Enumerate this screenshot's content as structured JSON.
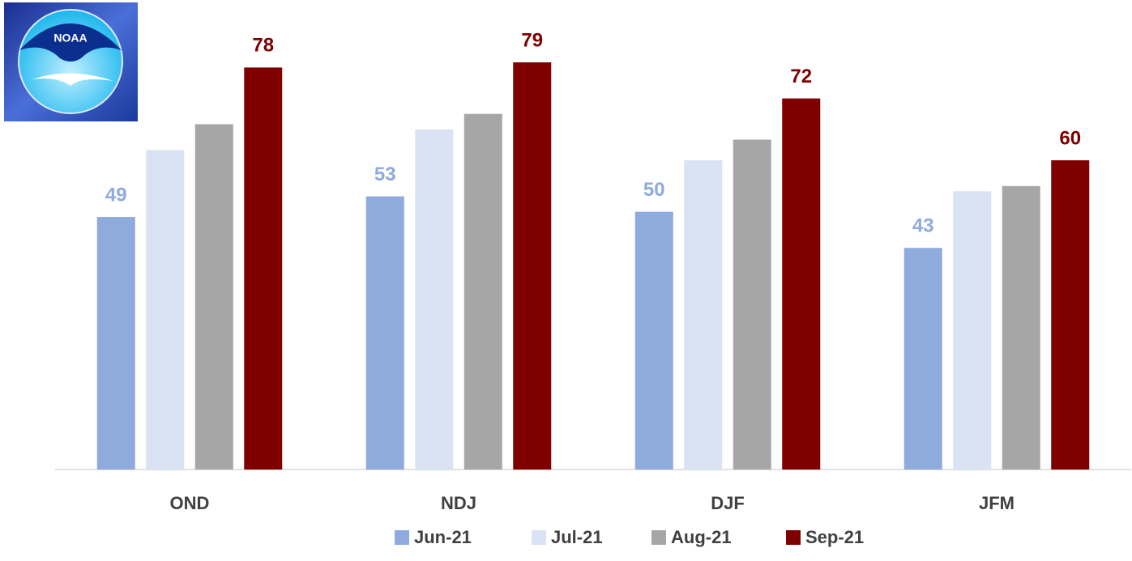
{
  "logo": {
    "text": "NOAA"
  },
  "chart_data": {
    "type": "bar",
    "categories": [
      "OND",
      "NDJ",
      "DJF",
      "JFM"
    ],
    "series": [
      {
        "name": "Jun-21",
        "color": "#8faadc",
        "show_labels": true,
        "values": [
          49,
          53,
          50,
          43
        ]
      },
      {
        "name": "Jul-21",
        "color": "#dae3f3",
        "show_labels": false,
        "values": [
          62,
          66,
          60,
          54
        ]
      },
      {
        "name": "Aug-21",
        "color": "#a6a6a6",
        "show_labels": false,
        "values": [
          67,
          69,
          64,
          55
        ]
      },
      {
        "name": "Sep-21",
        "color": "#800000",
        "show_labels": true,
        "values": [
          78,
          79,
          72,
          60
        ]
      }
    ],
    "ylim": [
      0,
      90
    ],
    "legend": "bottom"
  }
}
